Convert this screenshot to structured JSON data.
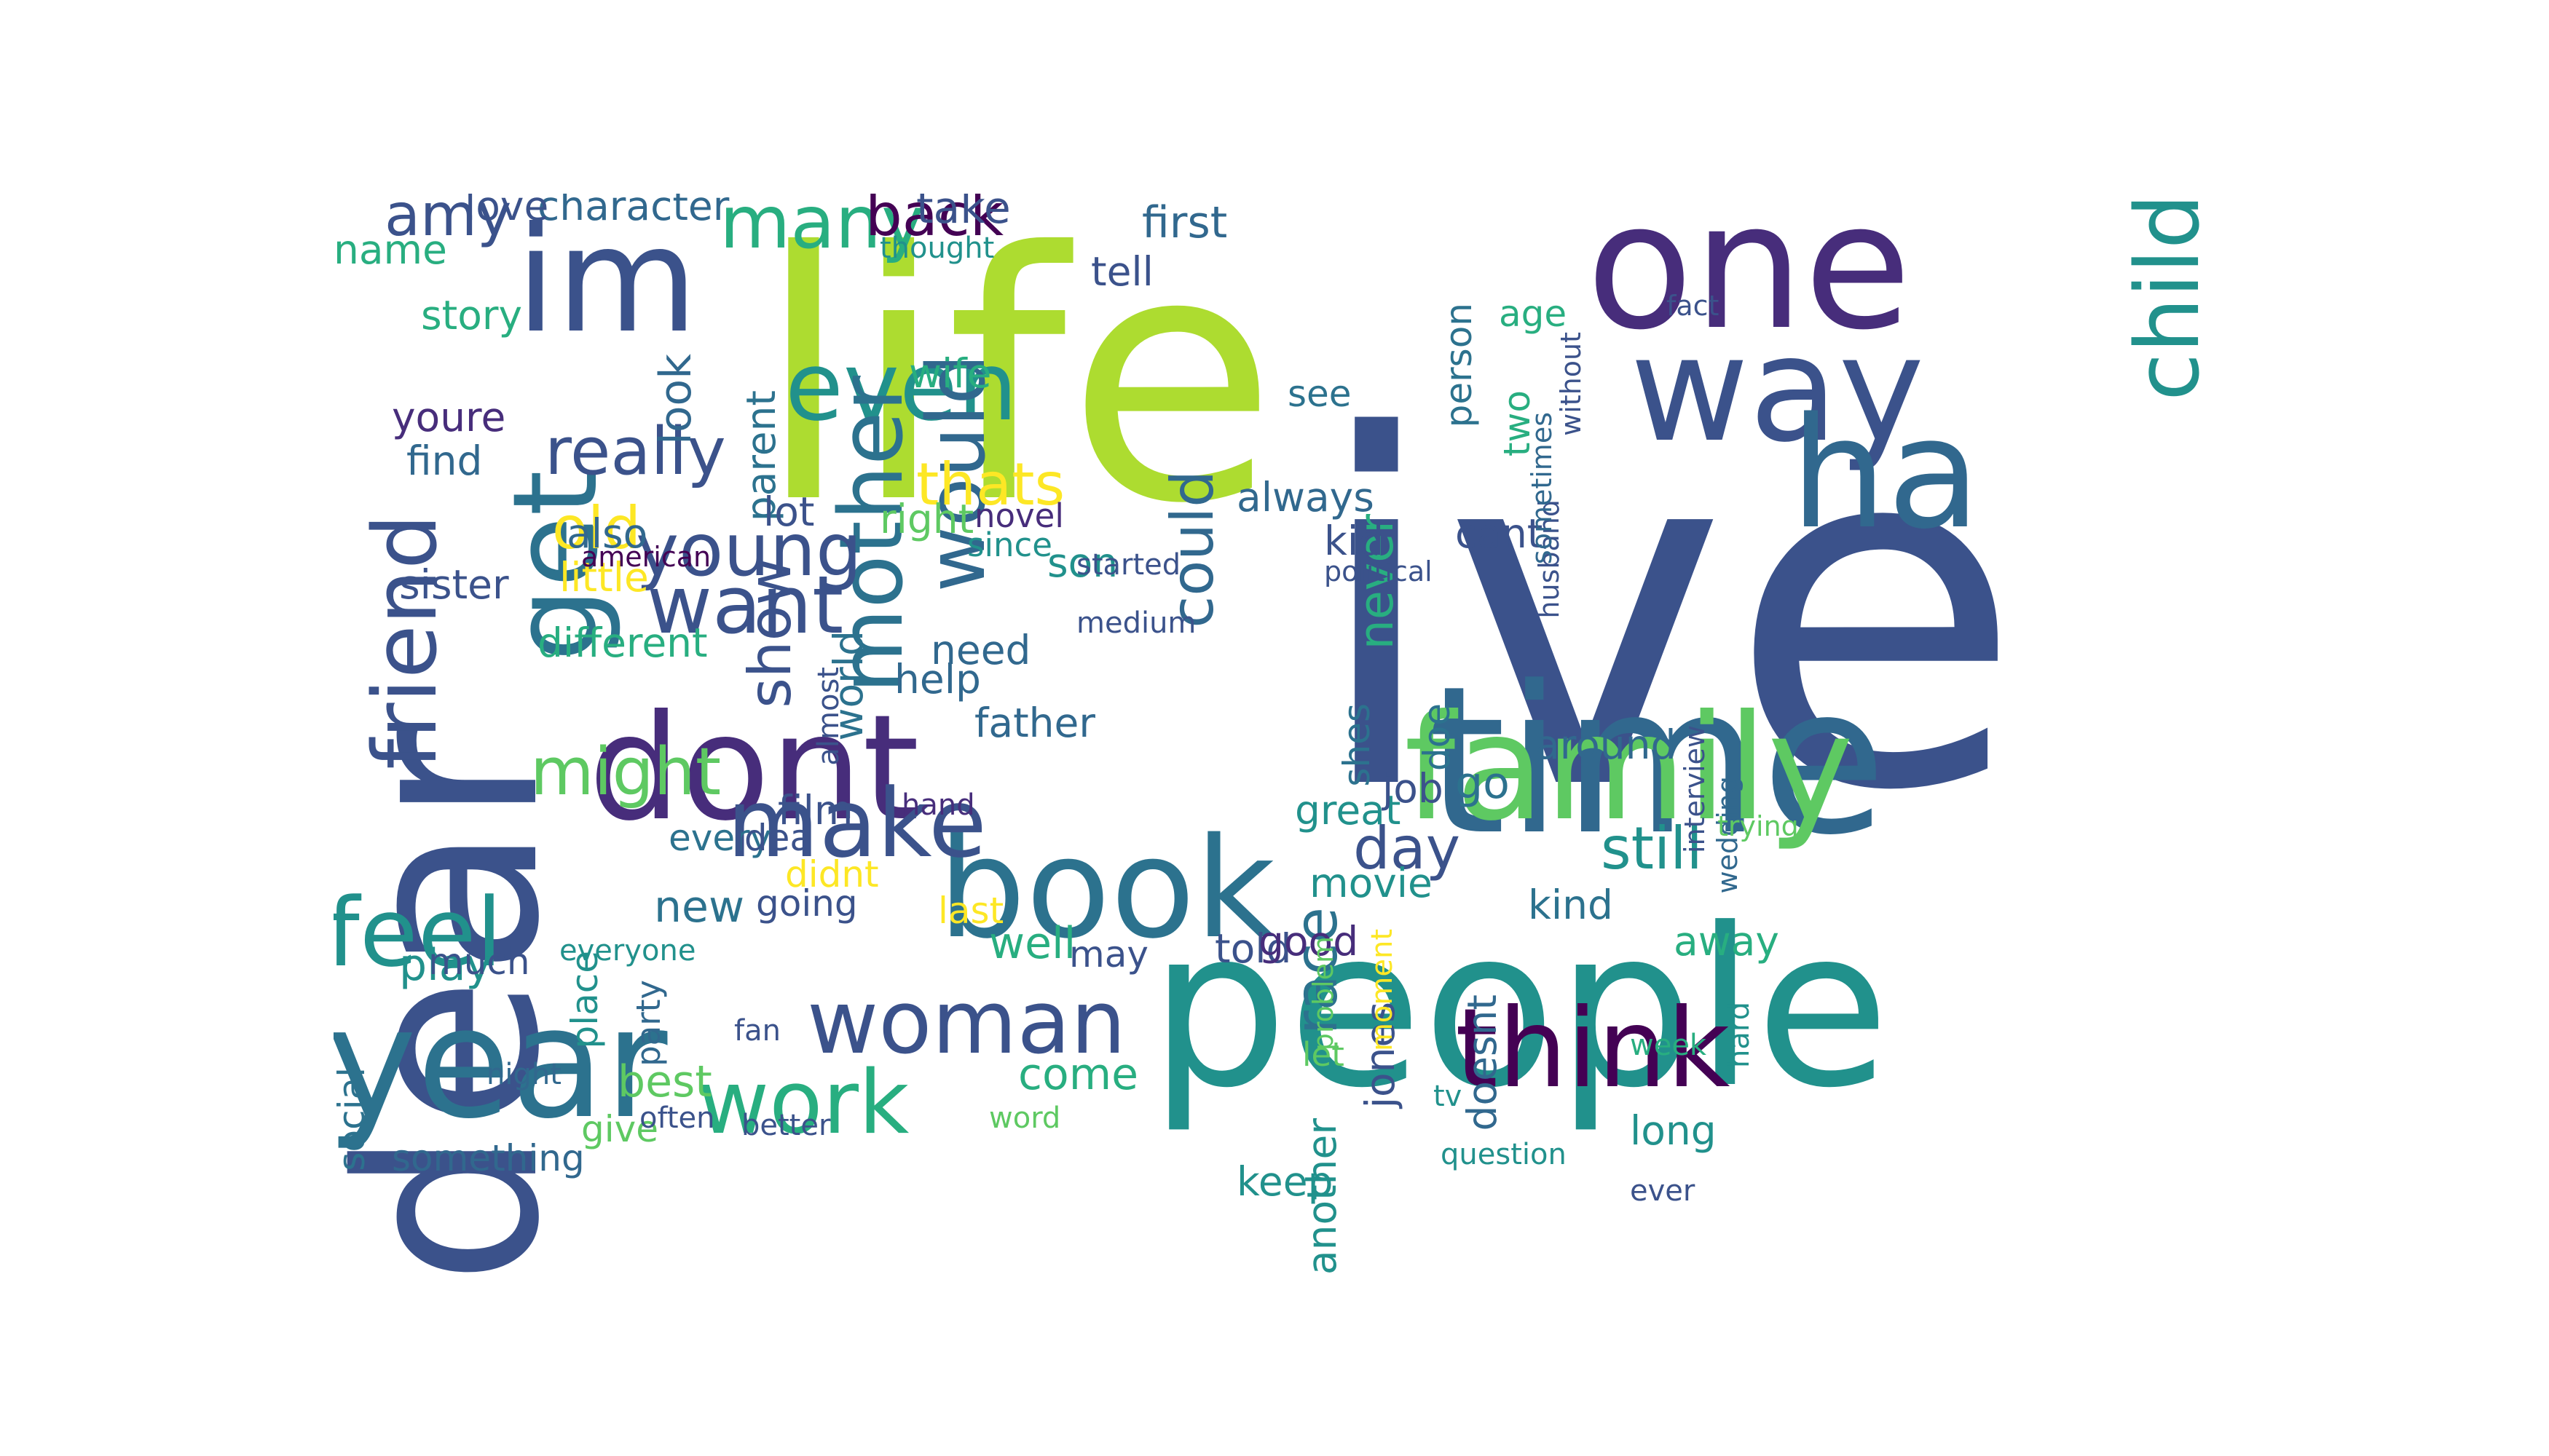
{
  "palette": {
    "dark_purple": "#440154",
    "indigo": "#472d7b",
    "blue_violet": "#3b528b",
    "steel_blue": "#2c728e",
    "teal": "#21918c",
    "sea_green": "#28ae80",
    "green": "#5ec962",
    "lime": "#addc30",
    "yellow": "#fde725"
  },
  "words": [
    {
      "text": "ive",
      "color": "#3b528b"
    },
    {
      "text": "life",
      "color": "#addc30"
    },
    {
      "text": "people",
      "color": "#21918c"
    },
    {
      "text": "dear",
      "color": "#3b528b"
    },
    {
      "text": "one",
      "color": "#472d7b"
    },
    {
      "text": "time",
      "color": "#31688e"
    },
    {
      "text": "family",
      "color": "#5ec962"
    },
    {
      "text": "book",
      "color": "#2c728e"
    },
    {
      "text": "dont",
      "color": "#472d7b"
    },
    {
      "text": "way",
      "color": "#3b528b"
    },
    {
      "text": "ha",
      "color": "#31688e"
    },
    {
      "text": "year",
      "color": "#2c728e"
    },
    {
      "text": "think",
      "color": "#440154"
    },
    {
      "text": "woman",
      "color": "#3b528b"
    },
    {
      "text": "im",
      "color": "#3b528b"
    },
    {
      "text": "get",
      "color": "#2c728e"
    },
    {
      "text": "even",
      "color": "#21918c"
    },
    {
      "text": "make",
      "color": "#3b528b"
    },
    {
      "text": "would",
      "color": "#31688e"
    },
    {
      "text": "mother",
      "color": "#2c728e"
    },
    {
      "text": "want",
      "color": "#3b528b"
    },
    {
      "text": "child",
      "color": "#21918c"
    },
    {
      "text": "work",
      "color": "#28ae80"
    },
    {
      "text": "feel",
      "color": "#21918c"
    },
    {
      "text": "friend",
      "color": "#3b528b"
    },
    {
      "text": "might",
      "color": "#5ec962"
    },
    {
      "text": "young",
      "color": "#3b528b"
    },
    {
      "text": "really",
      "color": "#3b528b"
    },
    {
      "text": "many",
      "color": "#28ae80"
    },
    {
      "text": "back",
      "color": "#440154"
    },
    {
      "text": "amy",
      "color": "#3b528b"
    },
    {
      "text": "thats",
      "color": "#fde725"
    },
    {
      "text": "could",
      "color": "#31688e"
    },
    {
      "text": "race",
      "color": "#2c728e"
    },
    {
      "text": "still",
      "color": "#21918c"
    },
    {
      "text": "day",
      "color": "#3b528b"
    },
    {
      "text": "show",
      "color": "#3b528b"
    },
    {
      "text": "old",
      "color": "#fde725"
    },
    {
      "text": "never",
      "color": "#28ae80"
    },
    {
      "text": "come",
      "color": "#28ae80"
    },
    {
      "text": "go",
      "color": "#2c728e"
    },
    {
      "text": "well",
      "color": "#28ae80"
    },
    {
      "text": "best",
      "color": "#5ec962"
    },
    {
      "text": "play",
      "color": "#21918c"
    },
    {
      "text": "new",
      "color": "#2c728e"
    },
    {
      "text": "first",
      "color": "#31688e"
    },
    {
      "text": "take",
      "color": "#3b528b"
    },
    {
      "text": "look",
      "color": "#31688e"
    },
    {
      "text": "world",
      "color": "#2c728e"
    },
    {
      "text": "character",
      "color": "#31688e"
    },
    {
      "text": "wife",
      "color": "#28ae80"
    },
    {
      "text": "parent",
      "color": "#2c728e"
    },
    {
      "text": "love",
      "color": "#3b528b"
    },
    {
      "text": "name",
      "color": "#28ae80"
    },
    {
      "text": "story",
      "color": "#28ae80"
    },
    {
      "text": "youre",
      "color": "#472d7b"
    },
    {
      "text": "find",
      "color": "#31688e"
    },
    {
      "text": "sister",
      "color": "#3b528b"
    },
    {
      "text": "little",
      "color": "#fde725"
    },
    {
      "text": "different",
      "color": "#28ae80"
    },
    {
      "text": "also",
      "color": "#31688e"
    },
    {
      "text": "lot",
      "color": "#3b528b"
    },
    {
      "text": "right",
      "color": "#5ec962"
    },
    {
      "text": "need",
      "color": "#31688e"
    },
    {
      "text": "help",
      "color": "#31688e"
    },
    {
      "text": "father",
      "color": "#31688e"
    },
    {
      "text": "son",
      "color": "#21918c"
    },
    {
      "text": "tell",
      "color": "#3b528b"
    },
    {
      "text": "always",
      "color": "#31688e"
    },
    {
      "text": "see",
      "color": "#2c728e"
    },
    {
      "text": "age",
      "color": "#28ae80"
    },
    {
      "text": "two",
      "color": "#28ae80"
    },
    {
      "text": "kid",
      "color": "#3b528b"
    },
    {
      "text": "cant",
      "color": "#3b528b"
    },
    {
      "text": "person",
      "color": "#2c728e"
    },
    {
      "text": "shes",
      "color": "#2c728e"
    },
    {
      "text": "doe",
      "color": "#2c728e"
    },
    {
      "text": "great",
      "color": "#21918c"
    },
    {
      "text": "around",
      "color": "#31688e"
    },
    {
      "text": "job",
      "color": "#3b528b"
    },
    {
      "text": "movie",
      "color": "#21918c"
    },
    {
      "text": "kind",
      "color": "#2c728e"
    },
    {
      "text": "doesnt",
      "color": "#31688e"
    },
    {
      "text": "jones",
      "color": "#3b528b"
    },
    {
      "text": "told",
      "color": "#3b528b"
    },
    {
      "text": "good",
      "color": "#472d7b"
    },
    {
      "text": "another",
      "color": "#21918c"
    },
    {
      "text": "let",
      "color": "#5ec962"
    },
    {
      "text": "keep",
      "color": "#21918c"
    },
    {
      "text": "away",
      "color": "#28ae80"
    },
    {
      "text": "long",
      "color": "#21918c"
    },
    {
      "text": "film",
      "color": "#3b528b"
    },
    {
      "text": "every",
      "color": "#2c728e"
    },
    {
      "text": "idea",
      "color": "#3b528b"
    },
    {
      "text": "didnt",
      "color": "#fde725"
    },
    {
      "text": "going",
      "color": "#3b528b"
    },
    {
      "text": "last",
      "color": "#fde725"
    },
    {
      "text": "may",
      "color": "#3b528b"
    },
    {
      "text": "much",
      "color": "#3b528b"
    },
    {
      "text": "place",
      "color": "#21918c"
    },
    {
      "text": "something",
      "color": "#31688e"
    },
    {
      "text": "give",
      "color": "#5ec962"
    },
    {
      "text": "social",
      "color": "#2c728e"
    },
    {
      "text": "party",
      "color": "#31688e"
    },
    {
      "text": "novel",
      "color": "#472d7b"
    },
    {
      "text": "since",
      "color": "#21918c"
    },
    {
      "text": "started",
      "color": "#3b528b"
    },
    {
      "text": "medium",
      "color": "#3b528b"
    },
    {
      "text": "american",
      "color": "#440154"
    },
    {
      "text": "political",
      "color": "#3b528b"
    },
    {
      "text": "wedding",
      "color": "#31688e"
    },
    {
      "text": "interview",
      "color": "#3b528b"
    },
    {
      "text": "trying",
      "color": "#5ec962"
    },
    {
      "text": "fact",
      "color": "#3b528b"
    },
    {
      "text": "problem",
      "color": "#5ec962"
    },
    {
      "text": "husband",
      "color": "#3b528b"
    },
    {
      "text": "without",
      "color": "#3b528b"
    },
    {
      "text": "sometimes",
      "color": "#31688e"
    },
    {
      "text": "almost",
      "color": "#3b528b"
    },
    {
      "text": "thought",
      "color": "#21918c"
    },
    {
      "text": "hard",
      "color": "#21918c"
    },
    {
      "text": "moment",
      "color": "#fde725"
    },
    {
      "text": "everyone",
      "color": "#21918c"
    },
    {
      "text": "fan",
      "color": "#3b528b"
    },
    {
      "text": "night",
      "color": "#31688e"
    },
    {
      "text": "often",
      "color": "#3b528b"
    },
    {
      "text": "better",
      "color": "#3b528b"
    },
    {
      "text": "word",
      "color": "#5ec962"
    },
    {
      "text": "tv",
      "color": "#21918c"
    },
    {
      "text": "week",
      "color": "#28ae80"
    },
    {
      "text": "question",
      "color": "#21918c"
    },
    {
      "text": "hand",
      "color": "#472d7b"
    },
    {
      "text": "ever",
      "color": "#3b528b"
    }
  ]
}
